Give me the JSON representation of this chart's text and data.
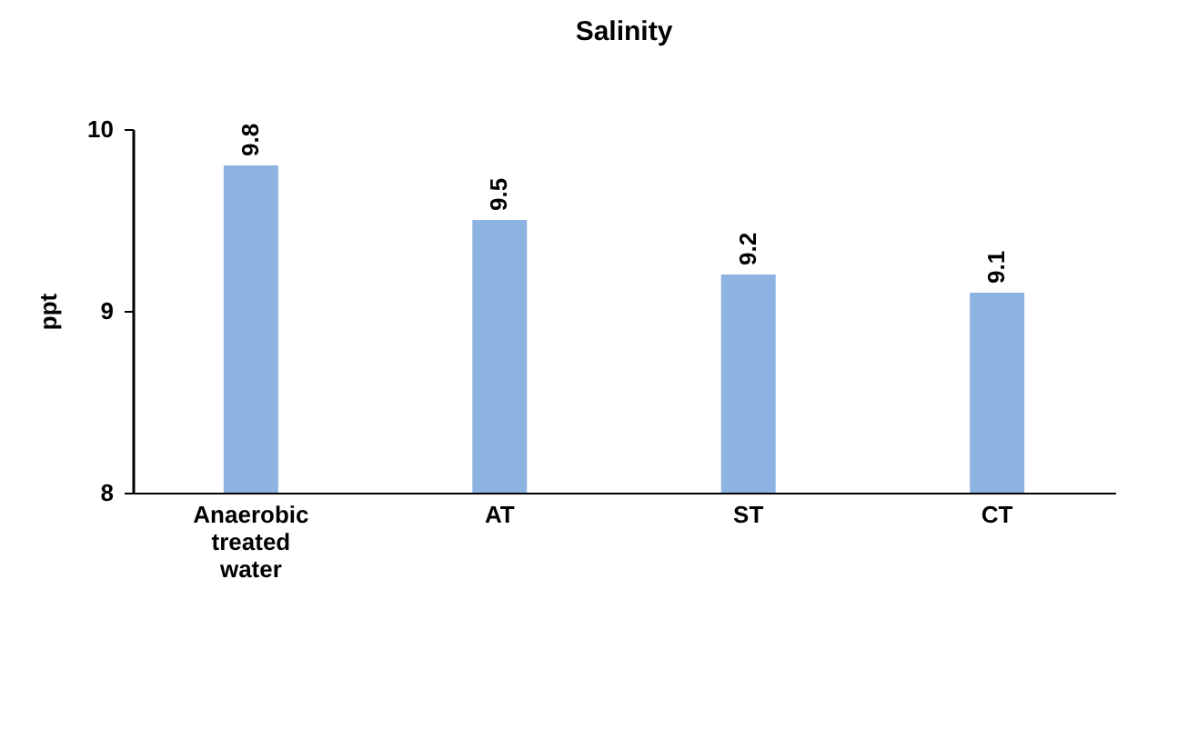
{
  "chart_data": {
    "type": "bar",
    "title": "Salinity",
    "ylabel": "ppt",
    "categories": [
      "Anaerobic treated water",
      "AT",
      "ST",
      "CT"
    ],
    "values": [
      9.8,
      9.5,
      9.2,
      9.1
    ],
    "color": "#8db3e2",
    "ylim": [
      8,
      10
    ],
    "yticks": [
      8,
      9,
      10
    ],
    "grid": false,
    "data_labels": true
  }
}
